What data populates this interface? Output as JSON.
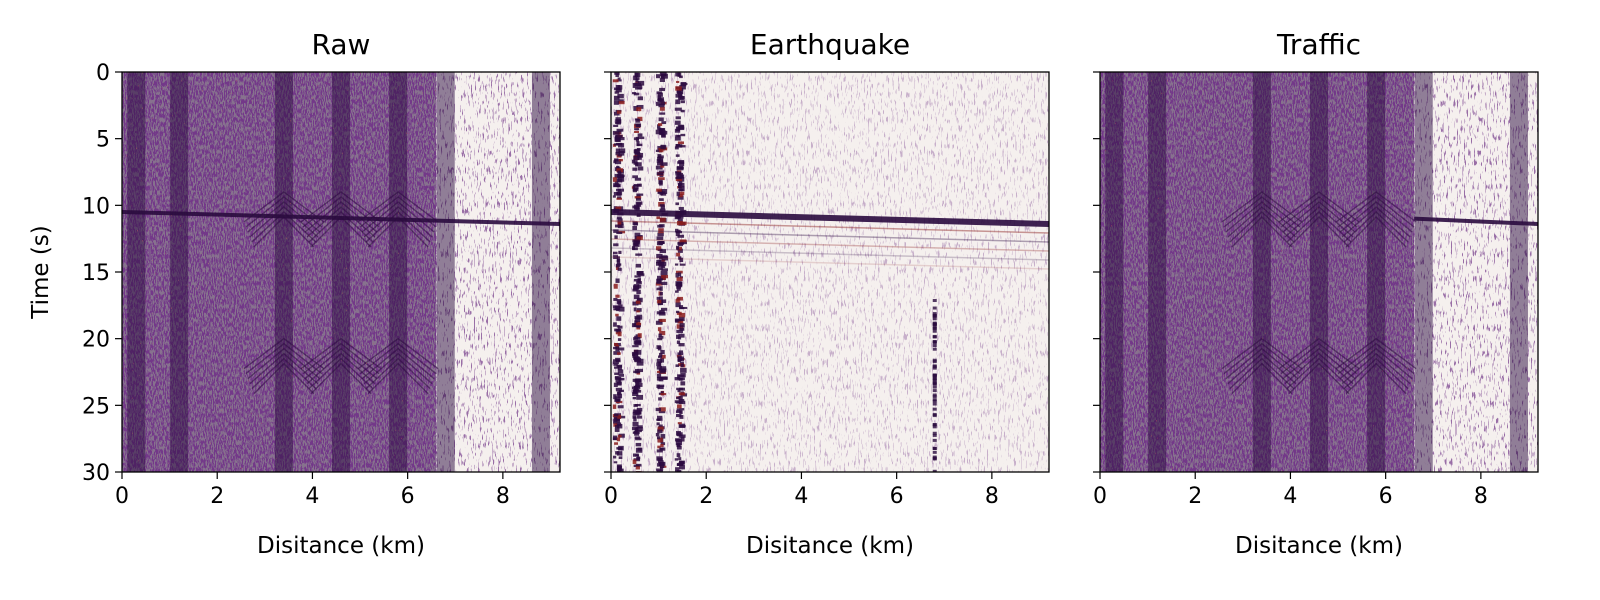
{
  "chart_data": {
    "type": "heatmap",
    "colormap": [
      "#2b0b3f",
      "#f5f0ee",
      "#8a1c1c"
    ],
    "shared_y": true,
    "panels": [
      {
        "title": "Raw",
        "xlabel": "Disitance (km)",
        "ylabel": "Time (s)",
        "xlim": [
          0,
          9.2
        ],
        "ylim": [
          30,
          0
        ],
        "xticks": [
          "0",
          "2",
          "4",
          "6",
          "8"
        ],
        "yticks": [
          "0",
          "5",
          "10",
          "15",
          "20",
          "25",
          "30"
        ],
        "signal": "traffic_plus_earthquake",
        "earthquake_arrival": {
          "x_km": [
            0,
            9.2
          ],
          "t_s": [
            10.5,
            11.4
          ]
        },
        "dense_noise_end_km": 6.6,
        "vehicle_tracks_km": [
          0.3,
          1.2,
          3.4,
          4.6,
          5.8,
          6.8,
          8.8
        ]
      },
      {
        "title": "Earthquake",
        "xlabel": "Disitance (km)",
        "ylabel": "",
        "xlim": [
          0,
          9.2
        ],
        "ylim": [
          30,
          0
        ],
        "xticks": [
          "0",
          "2",
          "4",
          "6",
          "8"
        ],
        "yticks": [],
        "signal": "earthquake_only",
        "earthquake_arrival": {
          "x_km": [
            0,
            9.2
          ],
          "t_s": [
            10.5,
            11.4
          ]
        },
        "noisy_channels_km": [
          0.1,
          0.5,
          1.0,
          1.4
        ],
        "bad_channel_km": 6.8
      },
      {
        "title": "Traffic",
        "xlabel": "Disitance (km)",
        "ylabel": "",
        "xlim": [
          0,
          9.2
        ],
        "ylim": [
          30,
          0
        ],
        "xticks": [
          "0",
          "2",
          "4",
          "6",
          "8"
        ],
        "yticks": [],
        "signal": "traffic_only",
        "earthquake_arrival": {
          "x_km": [
            6.6,
            9.2
          ],
          "t_s": [
            11.0,
            11.4
          ]
        },
        "dense_noise_end_km": 6.6,
        "vehicle_tracks_km": [
          0.3,
          1.2,
          3.4,
          4.6,
          5.8,
          6.8,
          8.8
        ]
      }
    ]
  }
}
